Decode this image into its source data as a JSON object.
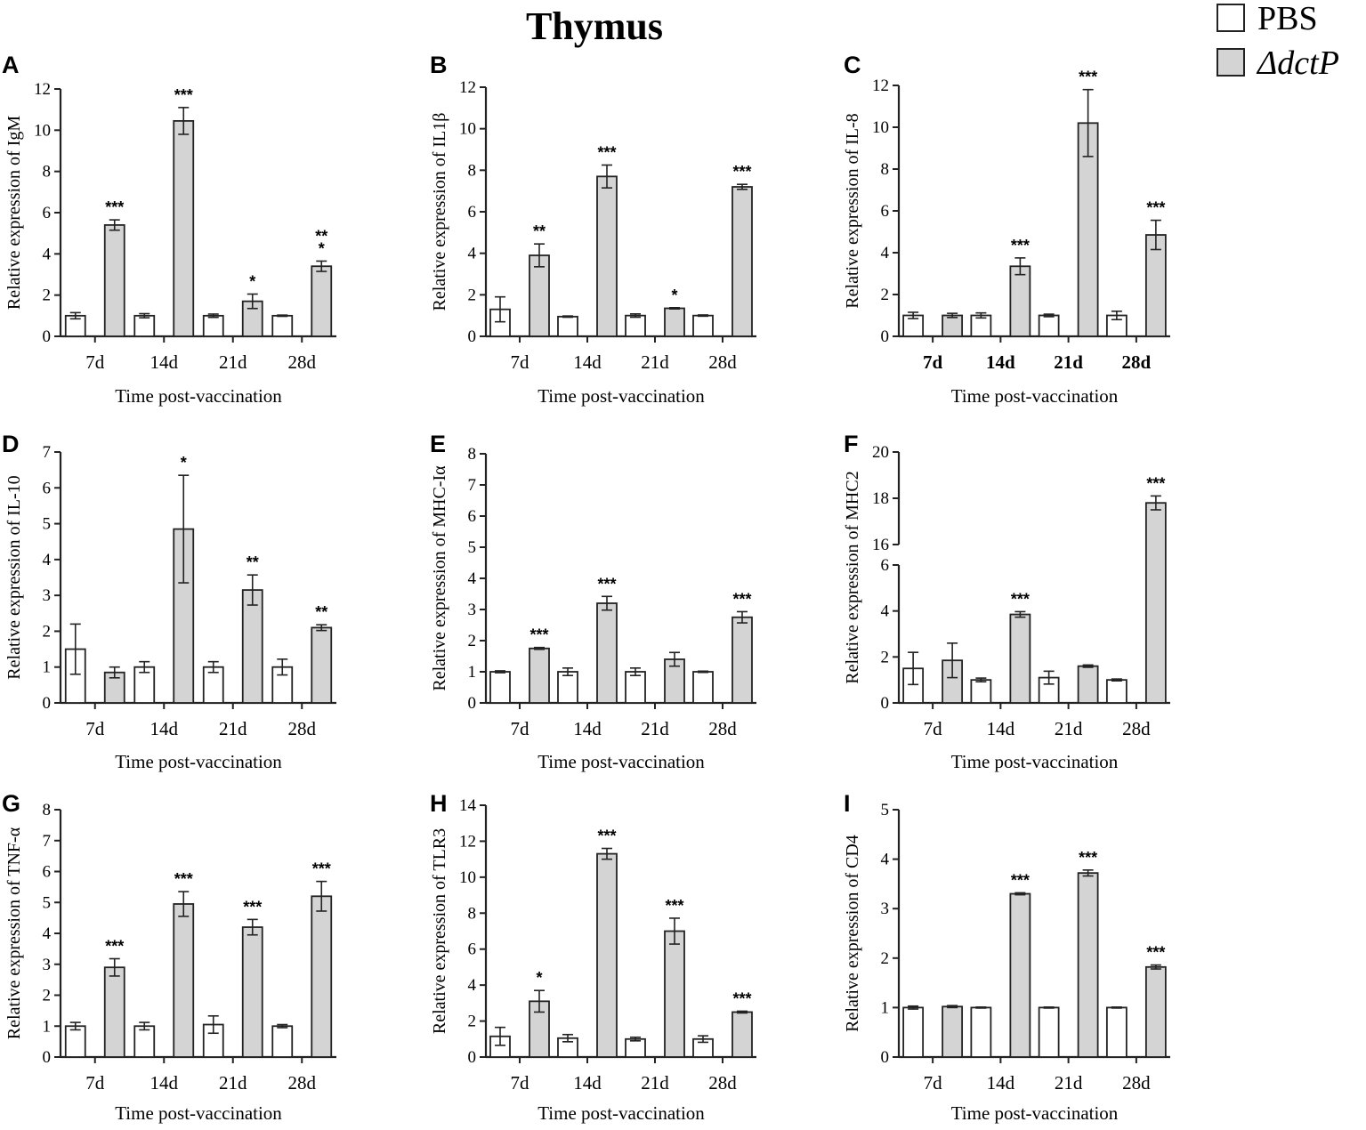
{
  "figure": {
    "title": "Thymus",
    "legend": [
      {
        "label": "PBS",
        "color": "#ffffff"
      },
      {
        "label": "ΔdctP",
        "color": "#d4d4d4"
      }
    ],
    "colors": {
      "axis": "#222222",
      "pbs_fill": "#ffffff",
      "dctp_fill": "#d4d4d4"
    }
  },
  "chart_data": [
    {
      "panel": "A",
      "type": "bar",
      "title": "",
      "xlabel": "Time post-vaccination",
      "ylabel": "Relative expression of IgM",
      "categories": [
        "7d",
        "14d",
        "21d",
        "28d"
      ],
      "ylim": [
        0,
        12
      ],
      "yticks": [
        "0",
        "2",
        "4",
        "6",
        "8",
        "10",
        "12"
      ],
      "series": [
        {
          "name": "PBS",
          "values": [
            1.0,
            1.0,
            1.0,
            1.0
          ],
          "errors": [
            0.15,
            0.1,
            0.08,
            0.03
          ]
        },
        {
          "name": "ΔdctP",
          "values": [
            5.4,
            10.45,
            1.7,
            3.4
          ],
          "errors": [
            0.25,
            0.65,
            0.35,
            0.25
          ],
          "significance": [
            "***",
            "***",
            "*",
            "**\n*"
          ]
        }
      ]
    },
    {
      "panel": "B",
      "type": "bar",
      "title": "",
      "xlabel": "Time post-vaccination",
      "ylabel": "Relative expression of IL1β",
      "categories": [
        "7d",
        "14d",
        "21d",
        "28d"
      ],
      "ylim": [
        0,
        12
      ],
      "yticks": [
        "0",
        "2",
        "4",
        "6",
        "8",
        "10",
        "12"
      ],
      "series": [
        {
          "name": "PBS",
          "values": [
            1.3,
            0.95,
            1.0,
            1.0
          ],
          "errors": [
            0.6,
            0.03,
            0.08,
            0.03
          ]
        },
        {
          "name": "ΔdctP",
          "values": [
            3.9,
            7.7,
            1.35,
            7.2
          ],
          "errors": [
            0.55,
            0.55,
            0.03,
            0.12
          ],
          "significance": [
            "**",
            "***",
            "*",
            "***"
          ]
        }
      ]
    },
    {
      "panel": "C",
      "type": "bar",
      "title": "",
      "bold_categories": true,
      "xlabel": "Time post-vaccination",
      "ylabel": "Relative expression of IL-8",
      "categories": [
        "7d",
        "14d",
        "21d",
        "28d"
      ],
      "ylim": [
        0,
        12
      ],
      "yticks": [
        "0",
        "2",
        "4",
        "6",
        "8",
        "10",
        "12"
      ],
      "series": [
        {
          "name": "PBS",
          "values": [
            1.0,
            1.0,
            1.0,
            1.0
          ],
          "errors": [
            0.15,
            0.12,
            0.06,
            0.2
          ]
        },
        {
          "name": "ΔdctP",
          "values": [
            1.0,
            3.35,
            10.2,
            4.85
          ],
          "errors": [
            0.1,
            0.4,
            1.6,
            0.7
          ],
          "significance": [
            "",
            "***",
            "***",
            "***"
          ]
        }
      ]
    },
    {
      "panel": "D",
      "type": "bar",
      "title": "",
      "xlabel": "Time post-vaccination",
      "ylabel": "Relative expression of IL-10",
      "categories": [
        "7d",
        "14d",
        "21d",
        "28d"
      ],
      "ylim": [
        0,
        7
      ],
      "yticks": [
        "0",
        "1",
        "2",
        "3",
        "4",
        "5",
        "6",
        "7"
      ],
      "series": [
        {
          "name": "PBS",
          "values": [
            1.5,
            1.0,
            1.0,
            1.0
          ],
          "errors": [
            0.7,
            0.15,
            0.15,
            0.22
          ]
        },
        {
          "name": "ΔdctP",
          "values": [
            0.85,
            4.85,
            3.15,
            2.1
          ],
          "errors": [
            0.15,
            1.5,
            0.42,
            0.08
          ],
          "significance": [
            "",
            "*",
            "**",
            "**"
          ]
        }
      ]
    },
    {
      "panel": "E",
      "type": "bar",
      "title": "",
      "xlabel": "Time post-vaccination",
      "ylabel": "Relative expression of MHC-Iα",
      "categories": [
        "7d",
        "14d",
        "21d",
        "28d"
      ],
      "ylim": [
        0,
        8
      ],
      "yticks": [
        "0",
        "1",
        "2",
        "3",
        "4",
        "5",
        "6",
        "7",
        "8"
      ],
      "series": [
        {
          "name": "PBS",
          "values": [
            1.0,
            1.0,
            1.0,
            1.0
          ],
          "errors": [
            0.03,
            0.12,
            0.12,
            0.02
          ]
        },
        {
          "name": "ΔdctP",
          "values": [
            1.75,
            3.2,
            1.4,
            2.75
          ],
          "errors": [
            0.03,
            0.22,
            0.22,
            0.18
          ],
          "significance": [
            "***",
            "***",
            "",
            "***"
          ]
        }
      ]
    },
    {
      "panel": "F",
      "type": "bar",
      "title": "",
      "broken_axis": true,
      "xlabel": "Time post-vaccination",
      "ylabel": "Relative expression of MHC2",
      "categories": [
        "7d",
        "14d",
        "21d",
        "28d"
      ],
      "ylim": [
        0,
        20
      ],
      "yticks": [
        "0",
        "2",
        "4",
        "6",
        "16",
        "18",
        "20"
      ],
      "axis_break": [
        6,
        16
      ],
      "series": [
        {
          "name": "PBS",
          "values": [
            1.5,
            1.0,
            1.1,
            1.0
          ],
          "errors": [
            0.7,
            0.08,
            0.28,
            0.04
          ]
        },
        {
          "name": "ΔdctP",
          "values": [
            1.85,
            3.85,
            1.6,
            17.8
          ],
          "errors": [
            0.75,
            0.12,
            0.05,
            0.3
          ],
          "significance": [
            "",
            "***",
            "",
            "***"
          ]
        }
      ]
    },
    {
      "panel": "G",
      "type": "bar",
      "title": "",
      "xlabel": "Time post-vaccination",
      "ylabel": "Relative expression of TNF-α",
      "categories": [
        "7d",
        "14d",
        "21d",
        "28d"
      ],
      "ylim": [
        0,
        8
      ],
      "yticks": [
        "0",
        "1",
        "2",
        "3",
        "4",
        "5",
        "6",
        "7",
        "8"
      ],
      "series": [
        {
          "name": "PBS",
          "values": [
            1.0,
            1.0,
            1.05,
            1.0
          ],
          "errors": [
            0.12,
            0.12,
            0.28,
            0.05
          ]
        },
        {
          "name": "ΔdctP",
          "values": [
            2.9,
            4.95,
            4.2,
            5.2
          ],
          "errors": [
            0.28,
            0.4,
            0.25,
            0.48
          ],
          "significance": [
            "***",
            "***",
            "***",
            "***"
          ]
        }
      ]
    },
    {
      "panel": "H",
      "type": "bar",
      "title": "",
      "xlabel": "Time post-vaccination",
      "ylabel": "Relative expression of TLR3",
      "categories": [
        "7d",
        "14d",
        "21d",
        "28d"
      ],
      "ylim": [
        0,
        14
      ],
      "yticks": [
        "0",
        "2",
        "4",
        "6",
        "8",
        "10",
        "12",
        "14"
      ],
      "series": [
        {
          "name": "PBS",
          "values": [
            1.15,
            1.05,
            1.0,
            1.0
          ],
          "errors": [
            0.5,
            0.2,
            0.1,
            0.18
          ]
        },
        {
          "name": "ΔdctP",
          "values": [
            3.1,
            11.3,
            7.0,
            2.5
          ],
          "errors": [
            0.6,
            0.3,
            0.72,
            0.05
          ],
          "significance": [
            "*",
            "***",
            "***",
            "***"
          ]
        }
      ]
    },
    {
      "panel": "I",
      "type": "bar",
      "title": "",
      "xlabel": "Time post-vaccination",
      "ylabel": "Relative expression of CD4",
      "categories": [
        "7d",
        "14d",
        "21d",
        "28d"
      ],
      "ylim": [
        0,
        5
      ],
      "yticks": [
        "0",
        "1",
        "2",
        "3",
        "4",
        "5"
      ],
      "series": [
        {
          "name": "PBS",
          "values": [
            1.0,
            1.0,
            1.0,
            1.0
          ],
          "errors": [
            0.03,
            0.01,
            0.01,
            0.01
          ]
        },
        {
          "name": "ΔdctP",
          "values": [
            1.02,
            3.3,
            3.72,
            1.82
          ],
          "errors": [
            0.02,
            0.02,
            0.06,
            0.04
          ],
          "significance": [
            "",
            "***",
            "***",
            "***"
          ]
        }
      ]
    }
  ]
}
